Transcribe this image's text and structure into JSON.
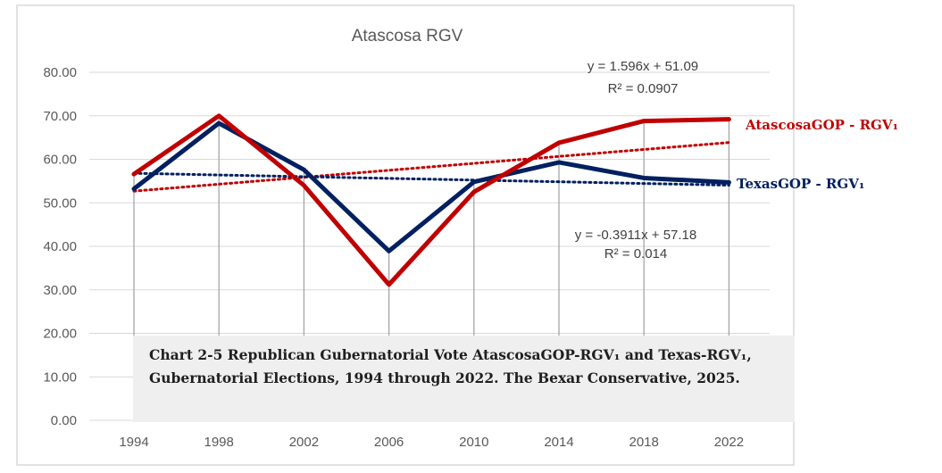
{
  "chart_data": {
    "type": "line",
    "title": "Atascosa RGV",
    "categories": [
      "1994",
      "1998",
      "2002",
      "2006",
      "2010",
      "2014",
      "2018",
      "2022"
    ],
    "y_ticks": [
      "0.00",
      "10.00",
      "20.00",
      "30.00",
      "40.00",
      "50.00",
      "60.00",
      "70.00",
      "80.00"
    ],
    "ylim": [
      0,
      80
    ],
    "grid": "horizontal",
    "series": [
      {
        "name": "AtascosaGOP - RGV₁",
        "color": "#c00000",
        "values": [
          56.6,
          70.0,
          54.0,
          31.2,
          52.5,
          63.8,
          68.8,
          69.2
        ],
        "trend_slope": 1.596,
        "trend_intercept": 51.09,
        "equation": "y = 1.596x + 51.09",
        "r2": "R² = 0.0907"
      },
      {
        "name": "TexasGOP - RGV₁",
        "color": "#002060",
        "values": [
          53.2,
          68.3,
          57.6,
          38.9,
          54.8,
          59.3,
          55.7,
          54.7
        ],
        "trend_slope": -0.3911,
        "trend_intercept": 57.18,
        "equation": "y = -0.3911x + 57.18",
        "r2": "R² = 0.014"
      }
    ],
    "caption": "Chart 2-5 Republican Gubernatorial Vote AtascosaGOP-RGV₁ and Texas-RGV₁, Gubernatorial Elections, 1994 through 2022. The Bexar Conservative, 2025."
  }
}
